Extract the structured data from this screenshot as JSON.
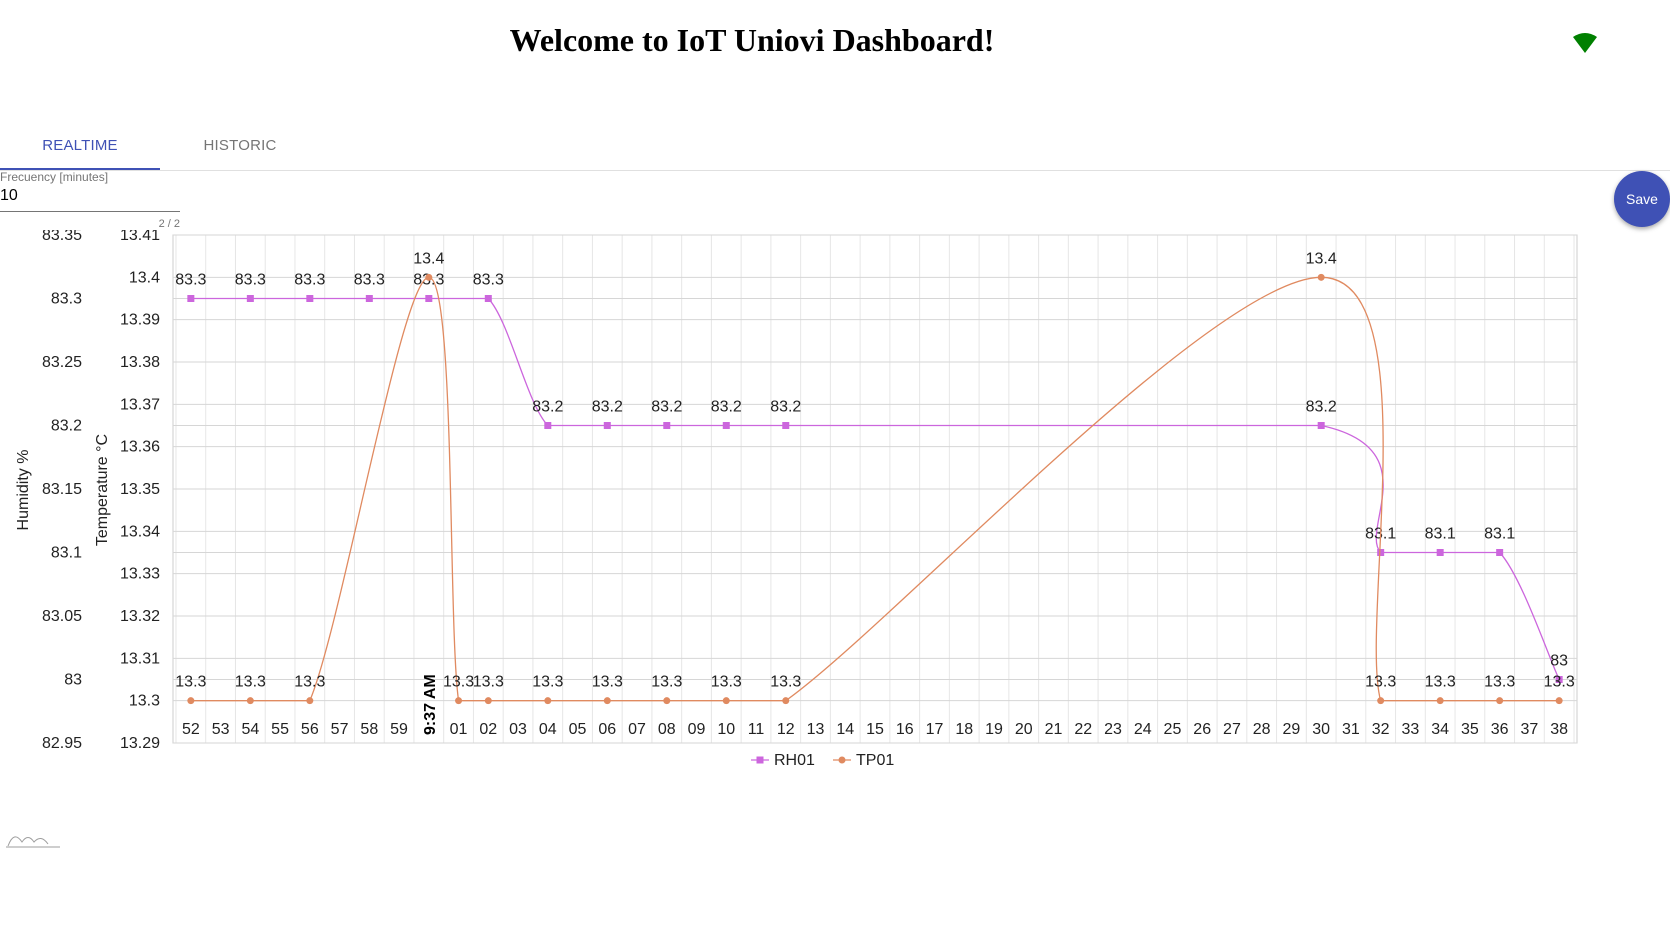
{
  "header": {
    "title": "Welcome to IoT Uniovi Dashboard!",
    "status_icon": "wifi-icon",
    "status_color": "#008000"
  },
  "tabs": [
    {
      "label": "REALTIME",
      "active": true
    },
    {
      "label": "HISTORIC",
      "active": false
    }
  ],
  "form": {
    "frequency_label": "Frecuency [minutes]",
    "frequency_value": "10",
    "counter": "2 / 2",
    "save_label": "Save"
  },
  "colors": {
    "accent": "#3f51b5",
    "rh_series": "#cc66dd",
    "tp_series": "#e08a60"
  },
  "chart_data": {
    "type": "line",
    "x": [
      "52",
      "53",
      "54",
      "55",
      "56",
      "57",
      "58",
      "59",
      "9:37 AM",
      "01",
      "02",
      "03",
      "04",
      "05",
      "06",
      "07",
      "08",
      "09",
      "10",
      "11",
      "12",
      "13",
      "14",
      "15",
      "16",
      "17",
      "18",
      "19",
      "20",
      "21",
      "22",
      "23",
      "24",
      "25",
      "26",
      "27",
      "28",
      "29",
      "30",
      "31",
      "32",
      "33",
      "34",
      "35",
      "36",
      "37",
      "38"
    ],
    "series": [
      {
        "name": "RH01",
        "axis": "left",
        "values": [
          83.3,
          null,
          83.3,
          null,
          83.3,
          null,
          83.3,
          null,
          83.3,
          null,
          83.3,
          null,
          83.2,
          null,
          83.2,
          null,
          83.2,
          null,
          83.2,
          null,
          83.2,
          null,
          null,
          null,
          null,
          null,
          null,
          null,
          null,
          null,
          null,
          null,
          null,
          null,
          null,
          null,
          null,
          null,
          83.2,
          null,
          83.1,
          null,
          83.1,
          null,
          83.1,
          null,
          83
        ]
      },
      {
        "name": "TP01",
        "axis": "right",
        "values": [
          13.3,
          null,
          13.3,
          null,
          13.3,
          null,
          null,
          null,
          13.4,
          13.3,
          13.3,
          null,
          13.3,
          null,
          13.3,
          null,
          13.3,
          null,
          13.3,
          null,
          13.3,
          null,
          null,
          null,
          null,
          null,
          null,
          null,
          null,
          null,
          null,
          null,
          null,
          null,
          null,
          null,
          null,
          null,
          13.4,
          null,
          13.3,
          null,
          13.3,
          null,
          13.3,
          null,
          13.3
        ]
      }
    ],
    "y_left": {
      "label": "Humidity %",
      "ticks": [
        "83.35",
        "83.3",
        "83.25",
        "83.2",
        "83.15",
        "83.1",
        "83.05",
        "83",
        "82.95"
      ],
      "range": [
        82.95,
        83.35
      ]
    },
    "y_right": {
      "label": "Temperature °C",
      "ticks": [
        "13.41",
        "13.4",
        "13.39",
        "13.38",
        "13.37",
        "13.36",
        "13.35",
        "13.34",
        "13.33",
        "13.32",
        "13.31",
        "13.3",
        "13.29"
      ],
      "range": [
        13.29,
        13.41
      ]
    },
    "legend": [
      "RH01",
      "TP01"
    ],
    "legend_position": "bottom",
    "grid": true
  }
}
